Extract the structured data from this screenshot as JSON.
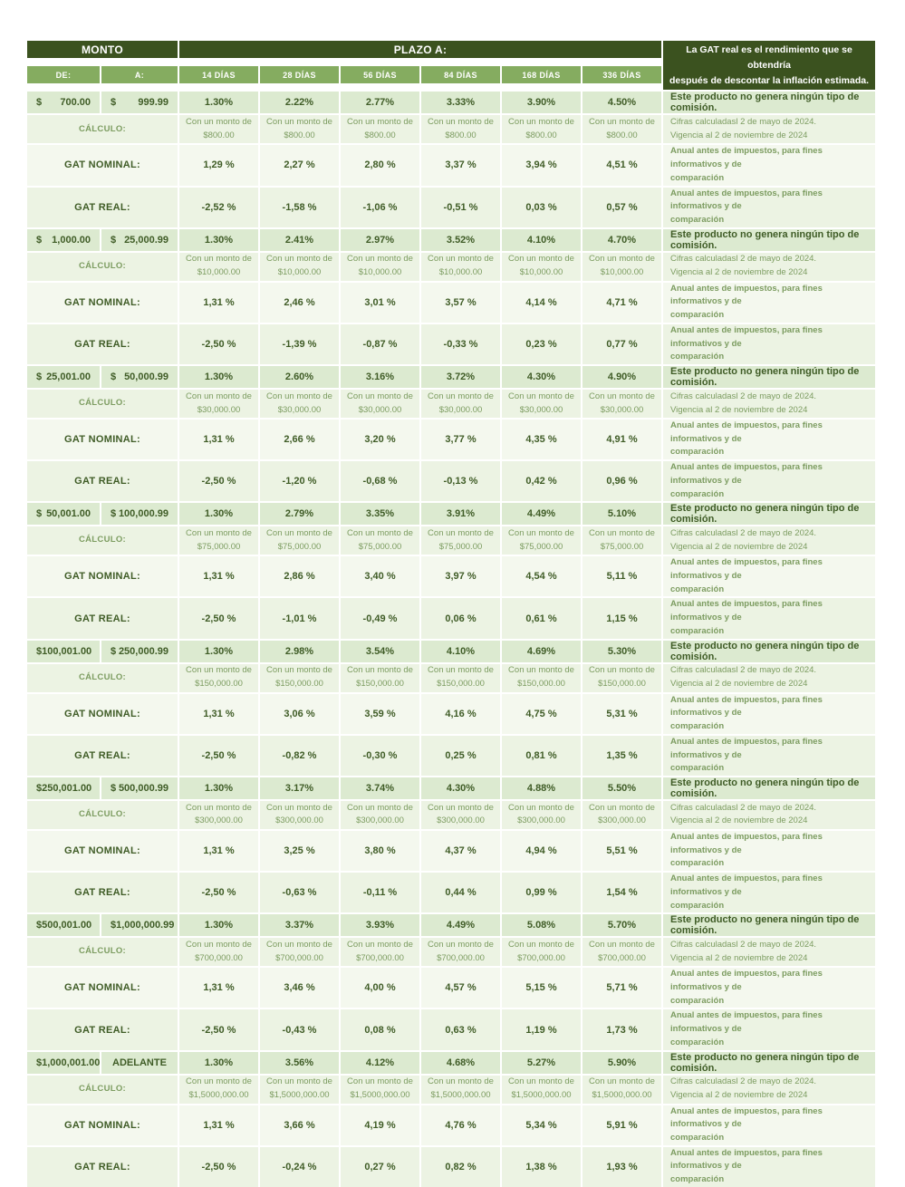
{
  "header": {
    "monto": "MONTO",
    "plazo": "PLAZO A:",
    "de": "DE:",
    "a": "A:",
    "days": [
      "14 DÍAS",
      "28 DÍAS",
      "56 DÍAS",
      "84 DÍAS",
      "168 DÍAS",
      "336 DÍAS"
    ],
    "gat_note_line1": "La GAT real es el rendimiento que se obtendría",
    "gat_note_line2": "después de descontar la inflación estimada."
  },
  "row_labels": {
    "calculo": "CÁLCULO:",
    "gat_nominal": "GAT NOMINAL:",
    "gat_real": "GAT REAL:"
  },
  "notes": {
    "commission": "Este producto no genera ningún tipo de comisión.",
    "calc_prefix": "Con un monto de",
    "cifras_line1": "Cifras calculadasl 2 de mayo de 2024.",
    "cifras_line2": "Vigencia al 2 de noviembre de 2024",
    "anual_line1": "Anual antes de impuestos, para fines informativos y de",
    "anual_line2": "comparación"
  },
  "colors": {
    "header_dark_green": "#3b521f",
    "subheader_green": "#85ac60",
    "rate_row_green": "#dcead0",
    "pale_row_green": "#ecf3e3",
    "lightest_row_green": "#f4f8ee",
    "bold_text_green": "#3f5c26",
    "secondary_text_green": "#7c9c60"
  },
  "groups": [
    {
      "de_symbol": "$",
      "de": "700.00",
      "a_symbol": "$",
      "a": "999.99",
      "rates": [
        "1.30%",
        "2.22%",
        "2.77%",
        "3.33%",
        "3.90%",
        "4.50%"
      ],
      "calc_amount": "$800.00",
      "gat_nominal": [
        "1,29 %",
        "2,27 %",
        "2,80 %",
        "3,37 %",
        "3,94 %",
        "4,51 %"
      ],
      "gat_real": [
        "-2,52 %",
        "-1,58 %",
        "-1,06 %",
        "-0,51 %",
        "0,03 %",
        "0,57 %"
      ]
    },
    {
      "de_symbol": "$",
      "de": "1,000.00",
      "a_symbol": "$",
      "a": "25,000.99",
      "rates": [
        "1.30%",
        "2.41%",
        "2.97%",
        "3.52%",
        "4.10%",
        "4.70%"
      ],
      "calc_amount": "$10,000.00",
      "gat_nominal": [
        "1,31 %",
        "2,46 %",
        "3,01 %",
        "3,57 %",
        "4,14 %",
        "4,71 %"
      ],
      "gat_real": [
        "-2,50 %",
        "-1,39 %",
        "-0,87 %",
        "-0,33 %",
        "0,23 %",
        "0,77 %"
      ]
    },
    {
      "de_symbol": "$",
      "de": "25,001.00",
      "a_symbol": "$",
      "a": "50,000.99",
      "rates": [
        "1.30%",
        "2.60%",
        "3.16%",
        "3.72%",
        "4.30%",
        "4.90%"
      ],
      "calc_amount": "$30,000.00",
      "gat_nominal": [
        "1,31 %",
        "2,66 %",
        "3,20 %",
        "3,77 %",
        "4,35 %",
        "4,91 %"
      ],
      "gat_real": [
        "-2,50 %",
        "-1,20 %",
        "-0,68 %",
        "-0,13 %",
        "0,42 %",
        "0,96 %"
      ]
    },
    {
      "de_symbol": "$",
      "de": "50,001.00",
      "a_symbol": "$",
      "a": "100,000.99",
      "rates": [
        "1.30%",
        "2.79%",
        "3.35%",
        "3.91%",
        "4.49%",
        "5.10%"
      ],
      "calc_amount": "$75,000.00",
      "gat_nominal": [
        "1,31 %",
        "2,86 %",
        "3,40 %",
        "3,97 %",
        "4,54 %",
        "5,11 %"
      ],
      "gat_real": [
        "-2,50 %",
        "-1,01 %",
        "-0,49 %",
        "0,06 %",
        "0,61 %",
        "1,15 %"
      ]
    },
    {
      "de_symbol": "$",
      "de": "100,001.00",
      "a_symbol": "$",
      "a": "250,000.99",
      "rates": [
        "1.30%",
        "2.98%",
        "3.54%",
        "4.10%",
        "4.69%",
        "5.30%"
      ],
      "calc_amount": "$150,000.00",
      "gat_nominal": [
        "1,31 %",
        "3,06 %",
        "3,59 %",
        "4,16 %",
        "4,75 %",
        "5,31 %"
      ],
      "gat_real": [
        "-2,50 %",
        "-0,82 %",
        "-0,30 %",
        "0,25 %",
        "0,81 %",
        "1,35 %"
      ]
    },
    {
      "de_symbol": "$",
      "de": "250,001.00",
      "a_symbol": "$",
      "a": "500,000.99",
      "rates": [
        "1.30%",
        "3.17%",
        "3.74%",
        "4.30%",
        "4.88%",
        "5.50%"
      ],
      "calc_amount": "$300,000.00",
      "gat_nominal": [
        "1,31 %",
        "3,25 %",
        "3,80 %",
        "4,37 %",
        "4,94 %",
        "5,51 %"
      ],
      "gat_real": [
        "-2,50 %",
        "-0,63 %",
        "-0,11 %",
        "0,44 %",
        "0,99 %",
        "1,54 %"
      ]
    },
    {
      "de_symbol": "$",
      "de": "500,001.00",
      "a_symbol": "$",
      "a": "1,000,000.99",
      "rates": [
        "1.30%",
        "3.37%",
        "3.93%",
        "4.49%",
        "5.08%",
        "5.70%"
      ],
      "calc_amount": "$700,000.00",
      "gat_nominal": [
        "1,31 %",
        "3,46 %",
        "4,00 %",
        "4,57 %",
        "5,15 %",
        "5,71 %"
      ],
      "gat_real": [
        "-2,50 %",
        "-0,43 %",
        "0,08 %",
        "0,63 %",
        "1,19 %",
        "1,73 %"
      ]
    },
    {
      "de_symbol": "$",
      "de": "1,000,001.00",
      "a_symbol": "",
      "a": "ADELANTE",
      "rates": [
        "1.30%",
        "3.56%",
        "4.12%",
        "4.68%",
        "5.27%",
        "5.90%"
      ],
      "calc_amount": "$1,5000,000.00",
      "gat_nominal": [
        "1,31 %",
        "3,66 %",
        "4,19 %",
        "4,76 %",
        "5,34 %",
        "5,91 %"
      ],
      "gat_real": [
        "-2,50 %",
        "-0,24 %",
        "0,27 %",
        "0,82 %",
        "1,38 %",
        "1,93 %"
      ]
    }
  ]
}
